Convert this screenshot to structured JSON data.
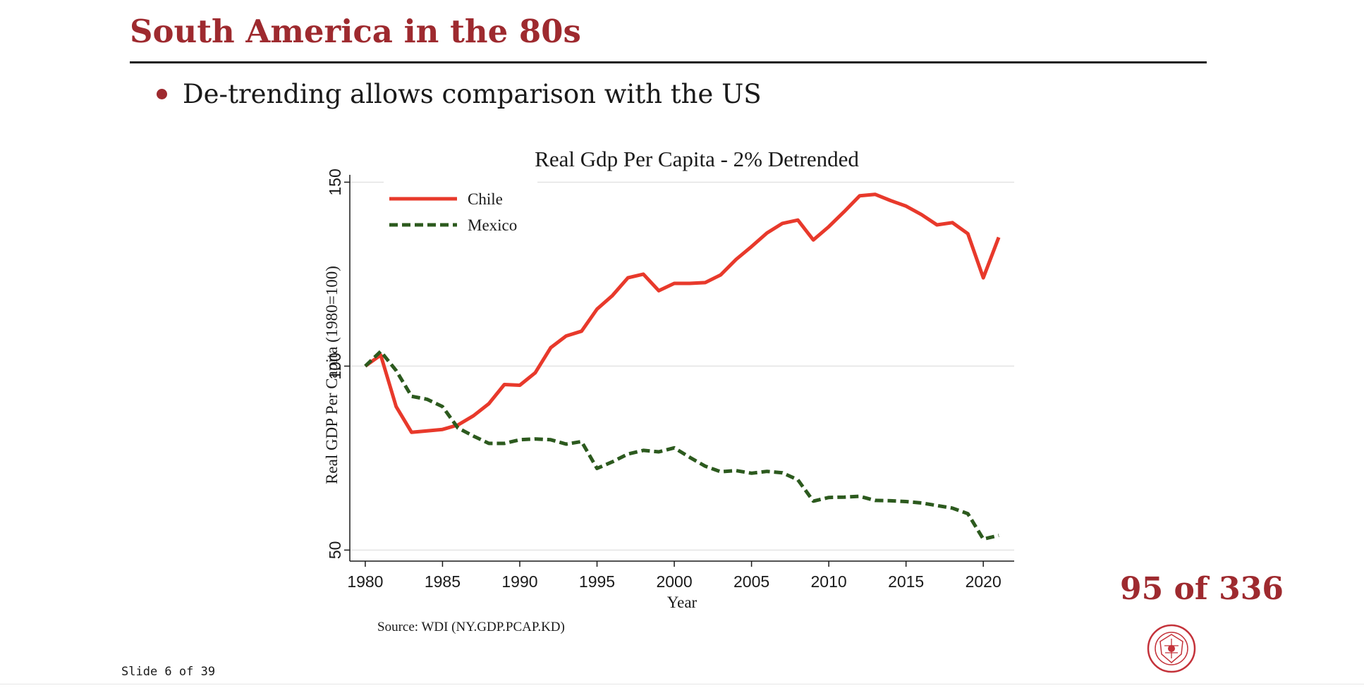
{
  "slide": {
    "title": "South America in the 80s",
    "bullet": "De-trending allows comparison with the US",
    "counter": "95 of 336",
    "footer": "Slide 6 of 39"
  },
  "colors": {
    "brand": "#9e2a2f",
    "chile": "#e8392b",
    "mexico": "#2c5a1e",
    "grid": "#e3e3e3",
    "text": "#1a1a1a"
  },
  "chart_data": {
    "type": "line",
    "title": "Real Gdp Per Capita - 2% Detrended",
    "xlabel": "Year",
    "ylabel": "Real GDP Per Capita (1980=100)",
    "source": "Source: WDI (NY.GDP.PCAP.KD)",
    "xlim": [
      1979,
      2022
    ],
    "ylim": [
      47,
      152
    ],
    "xticks": [
      1980,
      1985,
      1990,
      1995,
      2000,
      2005,
      2010,
      2015,
      2020
    ],
    "yticks": [
      50,
      100,
      150
    ],
    "grid": true,
    "legend_position": "top-left",
    "x": [
      1980,
      1981,
      1982,
      1983,
      1984,
      1985,
      1986,
      1987,
      1988,
      1989,
      1990,
      1991,
      1992,
      1993,
      1994,
      1995,
      1996,
      1997,
      1998,
      1999,
      2000,
      2001,
      2002,
      2003,
      2004,
      2005,
      2006,
      2007,
      2008,
      2009,
      2010,
      2011,
      2012,
      2013,
      2014,
      2015,
      2016,
      2017,
      2018,
      2019,
      2020,
      2021
    ],
    "series": [
      {
        "name": "Chile",
        "color": "#e8392b",
        "style": "solid",
        "values": [
          100,
          103,
          89,
          82,
          82.4,
          82.8,
          84,
          86.5,
          89.8,
          95,
          94.8,
          98.2,
          105,
          108.2,
          109.5,
          115.5,
          119.2,
          124,
          125,
          120.5,
          122.5,
          122.5,
          122.7,
          124.8,
          129,
          132.5,
          136.2,
          138.8,
          139.7,
          134.3,
          137.9,
          142,
          146.3,
          146.7,
          145,
          143.5,
          141.2,
          138.4,
          139,
          136,
          124,
          135
        ]
      },
      {
        "name": "Mexico",
        "color": "#2c5a1e",
        "style": "dashed",
        "values": [
          100,
          104,
          98.8,
          91.8,
          91,
          89,
          83.2,
          81,
          79,
          79,
          80,
          80.2,
          80,
          78.8,
          79.5,
          72.2,
          74,
          76.1,
          77.1,
          76.7,
          77.8,
          75.2,
          72.8,
          71.3,
          71.6,
          70.9,
          71.4,
          71,
          69.1,
          63.3,
          64.3,
          64.4,
          64.6,
          63.5,
          63.4,
          63.2,
          62.8,
          62.1,
          61.4,
          59.9,
          53,
          54
        ]
      }
    ]
  }
}
